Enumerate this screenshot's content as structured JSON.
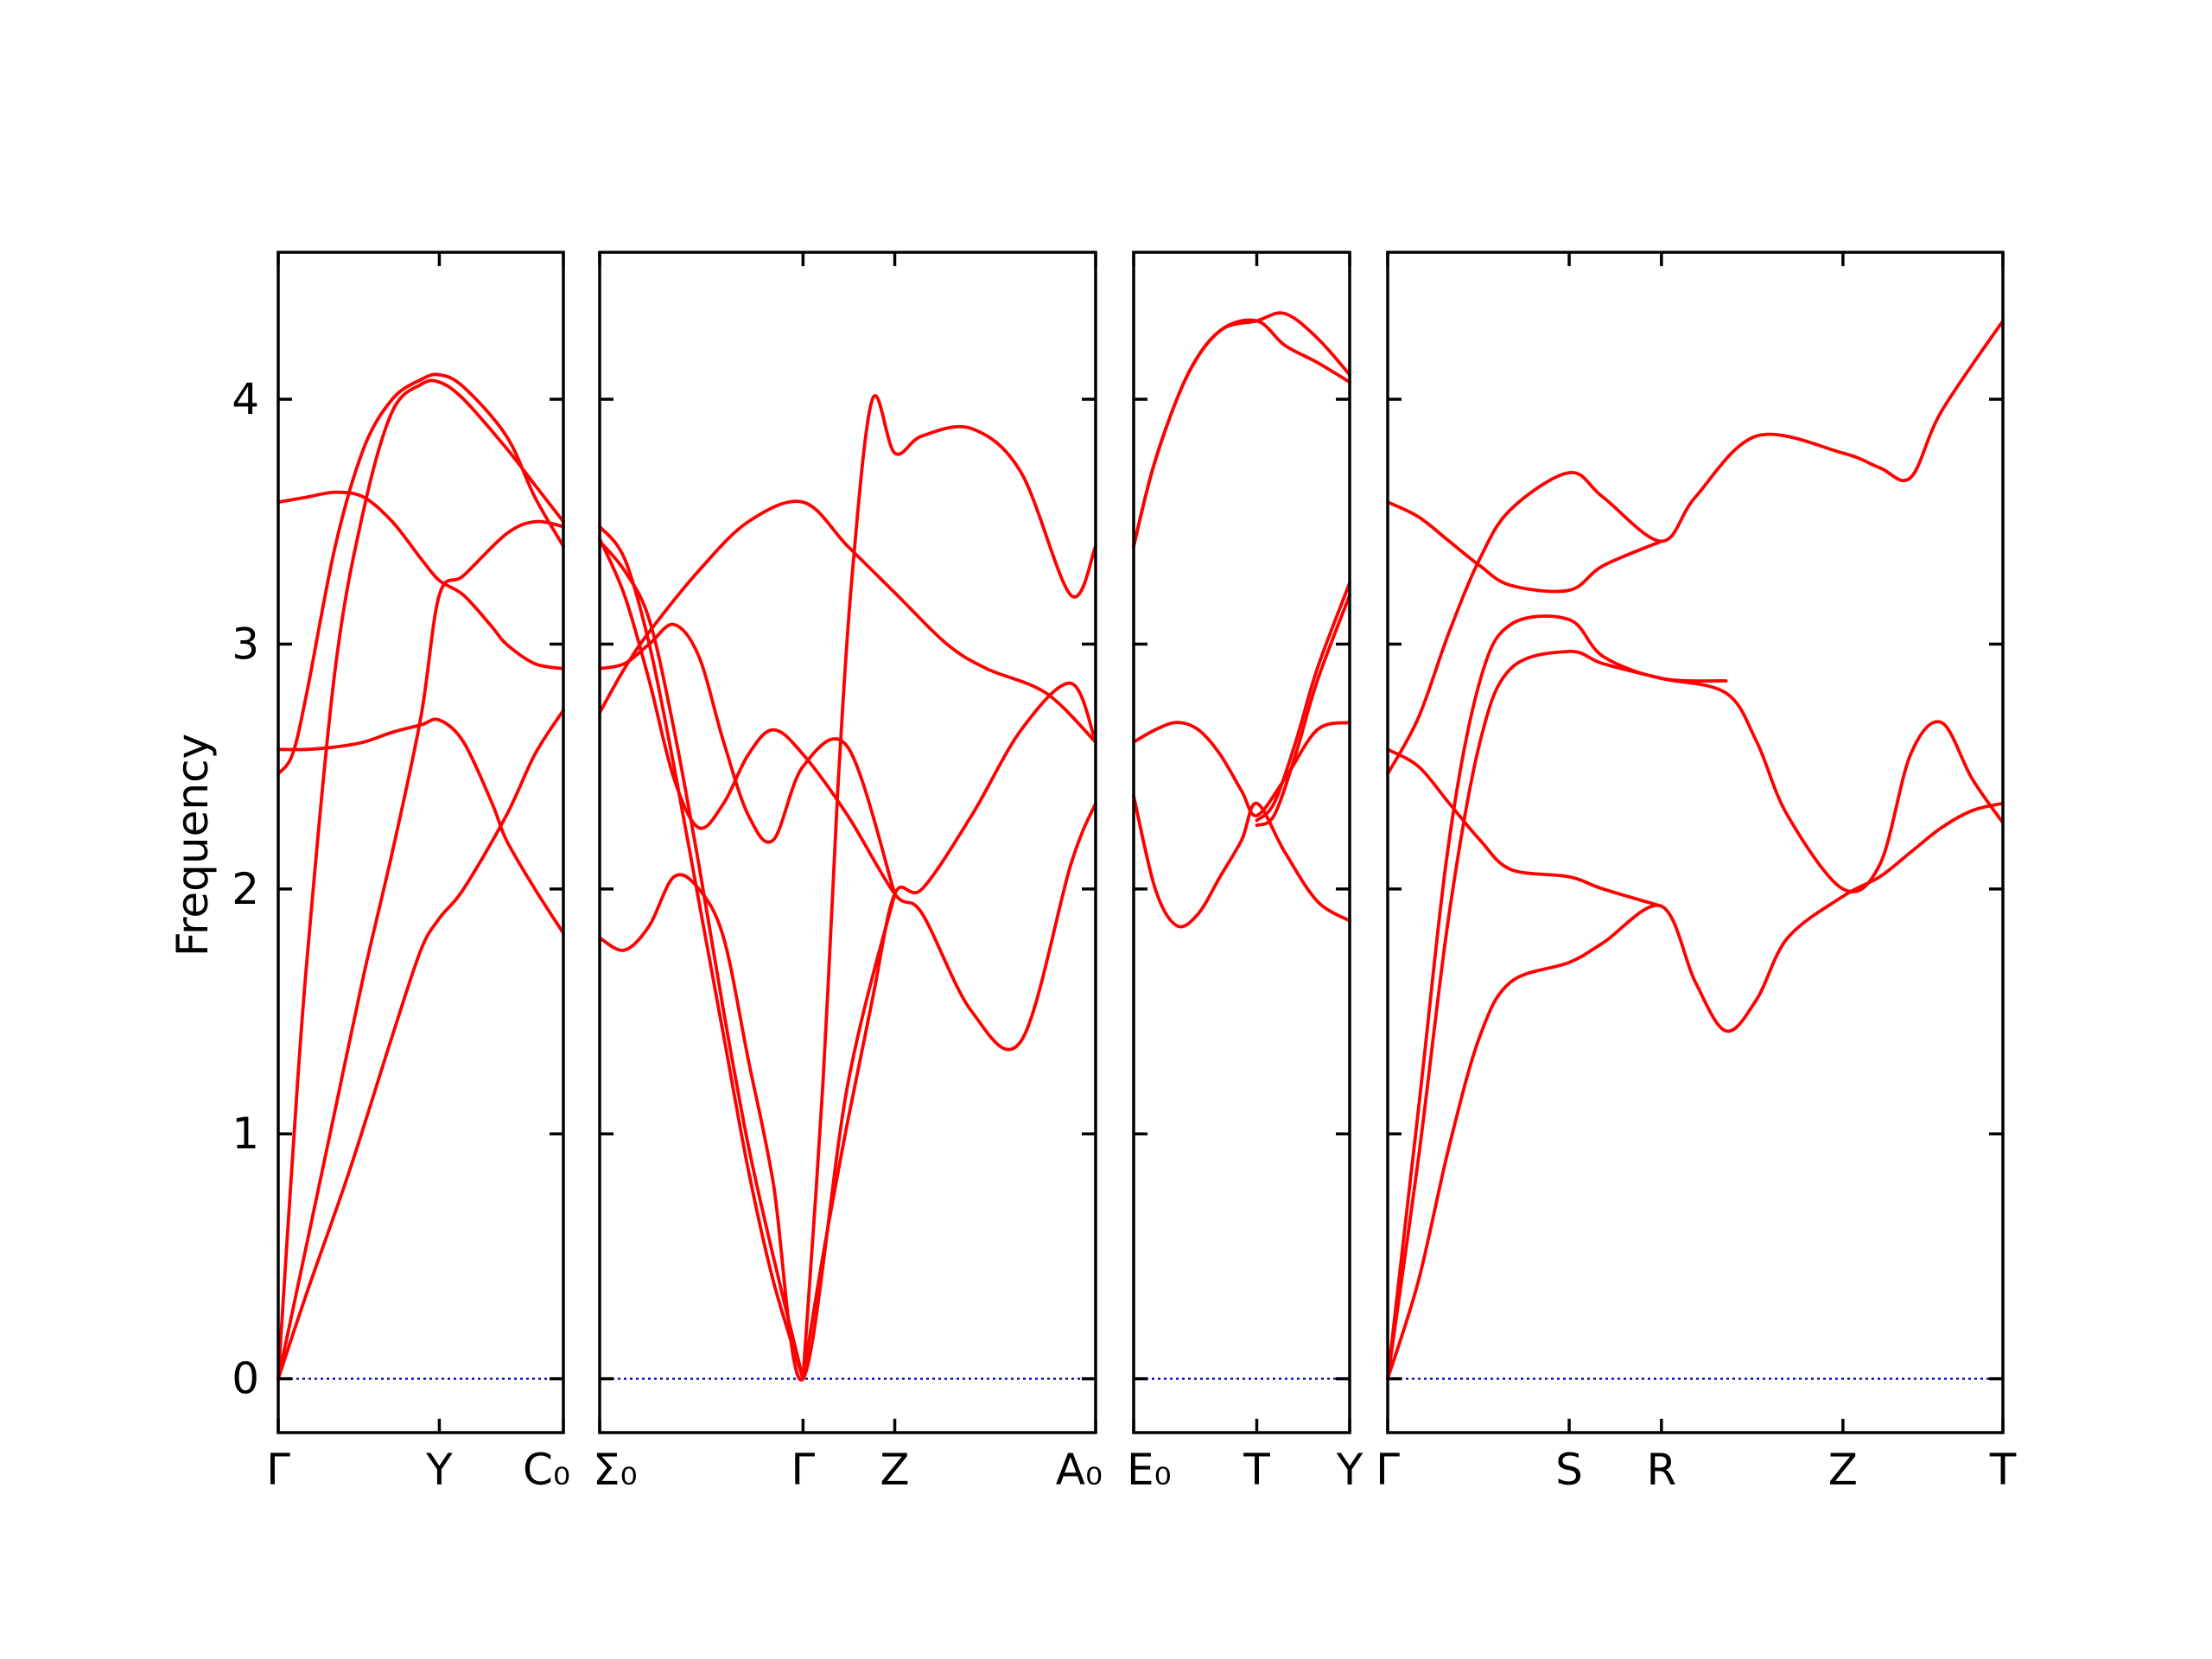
{
  "chart_data": {
    "type": "line",
    "ylabel": "Frequency",
    "ylim": [
      -0.22,
      4.6
    ],
    "yticks": [
      0,
      1,
      2,
      3,
      4
    ],
    "ytick_labels": [
      "0",
      "1",
      "2",
      "3",
      "4"
    ],
    "colors": {
      "bands": "#ff0000",
      "zero_line": "#0000cc",
      "axes": "#000000"
    },
    "grid": false,
    "panels": [
      {
        "name": "path-1",
        "xlim": [
          0,
          1
        ],
        "ticks": [
          {
            "x": 0,
            "label": "Γ"
          },
          {
            "x": 0.565,
            "label": "Y"
          },
          {
            "x": 1,
            "label": "C₀"
          }
        ],
        "series": [
          {
            "x": [
              0,
              0.1,
              0.25,
              0.4,
              0.5,
              0.565,
              0.65,
              0.8,
              0.9,
              1
            ],
            "values": [
              0,
              0.35,
              0.85,
              1.4,
              1.75,
              1.88,
              2.0,
              2.3,
              2.55,
              2.73
            ]
          },
          {
            "x": [
              0,
              0.1,
              0.2,
              0.3,
              0.4,
              0.5,
              0.565,
              0.65,
              0.8,
              0.9,
              1
            ],
            "values": [
              0,
              0.55,
              1.1,
              1.65,
              2.15,
              2.7,
              3.2,
              3.28,
              3.45,
              3.5,
              3.48
            ]
          },
          {
            "x": [
              0,
              0.05,
              0.1,
              0.2,
              0.3,
              0.4,
              0.5,
              0.565,
              0.65,
              0.8,
              0.9,
              1
            ],
            "values": [
              0,
              0.9,
              1.7,
              2.9,
              3.55,
              3.95,
              4.06,
              4.07,
              4.0,
              3.8,
              3.65,
              3.5
            ]
          },
          {
            "x": [
              0,
              0.05,
              0.1,
              0.2,
              0.3,
              0.4,
              0.5,
              0.565,
              0.65,
              0.8,
              0.9,
              1
            ],
            "values": [
              2.47,
              2.55,
              2.8,
              3.4,
              3.8,
              4.0,
              4.08,
              4.1,
              4.05,
              3.85,
              3.6,
              3.4
            ]
          },
          {
            "x": [
              0,
              0.1,
              0.2,
              0.3,
              0.4,
              0.5,
              0.565,
              0.65,
              0.75,
              0.8,
              0.9,
              1
            ],
            "values": [
              3.58,
              3.6,
              3.62,
              3.6,
              3.5,
              3.35,
              3.26,
              3.2,
              3.07,
              3.0,
              2.92,
              2.9
            ]
          },
          {
            "x": [
              0,
              0.1,
              0.2,
              0.3,
              0.4,
              0.5,
              0.565,
              0.65,
              0.75,
              0.8,
              0.9,
              1
            ],
            "values": [
              2.57,
              2.57,
              2.58,
              2.6,
              2.64,
              2.67,
              2.69,
              2.6,
              2.35,
              2.2,
              2.0,
              1.82
            ]
          }
        ]
      },
      {
        "name": "path-2",
        "xlim": [
          0,
          1
        ],
        "ticks": [
          {
            "x": 0,
            "label": "Σ₀"
          },
          {
            "x": 0.41,
            "label": "Γ"
          },
          {
            "x": 0.595,
            "label": "Z"
          },
          {
            "x": 1,
            "label": "A₀"
          }
        ],
        "series": [
          {
            "x": [
              0,
              0.05,
              0.1,
              0.2,
              0.3,
              0.41,
              0.5,
              0.6,
              0.7,
              0.78,
              0.9,
              1
            ],
            "values": [
              2.72,
              2.9,
              3.05,
              3.3,
              3.5,
              3.58,
              3.4,
              3.2,
              3.0,
              2.9,
              2.8,
              2.6
            ]
          },
          {
            "x": [
              0,
              0.05,
              0.1,
              0.15,
              0.2,
              0.25,
              0.3,
              0.35,
              0.41
            ],
            "values": [
              3.48,
              3.35,
              3.0,
              2.5,
              1.95,
              1.4,
              0.85,
              0.4,
              0
            ]
          },
          {
            "x": [
              0,
              0.05,
              0.1,
              0.15,
              0.2,
              0.25,
              0.3,
              0.35,
              0.41
            ],
            "values": [
              3.42,
              3.3,
              3.1,
              2.65,
              2.1,
              1.5,
              0.95,
              0.5,
              0
            ]
          },
          {
            "x": [
              0.41,
              0.45,
              0.5,
              0.55,
              0.595,
              0.65,
              0.75,
              0.85,
              0.95,
              1
            ],
            "values": [
              0,
              0.5,
              1.05,
              1.55,
              1.98,
              2.0,
              2.3,
              2.65,
              2.84,
              2.6
            ]
          },
          {
            "x": [
              0.41,
              0.45,
              0.48,
              0.51,
              0.55,
              0.595,
              0.65,
              0.75,
              0.85,
              0.95,
              1
            ],
            "values": [
              0,
              1.2,
              2.4,
              3.3,
              4.0,
              3.78,
              3.85,
              3.88,
              3.7,
              3.2,
              3.4
            ]
          },
          {
            "x": [
              0,
              0.05,
              0.1,
              0.15,
              0.2,
              0.25,
              0.3,
              0.35,
              0.41,
              0.5,
              0.595,
              0.65,
              0.75,
              0.85,
              0.95,
              1
            ],
            "values": [
              3.43,
              3.2,
              2.85,
              2.45,
              2.25,
              2.35,
              2.55,
              2.65,
              2.55,
              2.3,
              1.98,
              1.9,
              1.5,
              1.38,
              2.1,
              2.35
            ]
          },
          {
            "x": [
              0,
              0.05,
              0.1,
              0.15,
              0.2,
              0.25,
              0.3,
              0.35,
              0.41,
              0.5,
              0.595
            ],
            "values": [
              2.9,
              2.92,
              3.0,
              3.08,
              2.95,
              2.6,
              2.3,
              2.2,
              2.5,
              2.58,
              1.98
            ]
          },
          {
            "x": [
              0,
              0.05,
              0.1,
              0.15,
              0.2,
              0.25,
              0.3,
              0.35,
              0.41,
              0.5,
              0.595
            ],
            "values": [
              1.8,
              1.75,
              1.85,
              2.05,
              2.0,
              1.8,
              1.3,
              0.8,
              0,
              1.2,
              1.98
            ]
          }
        ]
      },
      {
        "name": "path-3",
        "xlim": [
          0,
          1
        ],
        "ticks": [
          {
            "x": 0,
            "label": "E₀"
          },
          {
            "x": 0.57,
            "label": "T"
          },
          {
            "x": 1,
            "label": "Y"
          }
        ],
        "series": [
          {
            "x": [
              0,
              0.1,
              0.25,
              0.4,
              0.57,
              0.7,
              0.85,
              1
            ],
            "values": [
              3.4,
              3.75,
              4.1,
              4.28,
              4.32,
              4.22,
              4.15,
              4.07
            ]
          },
          {
            "x": [
              0,
              0.1,
              0.25,
              0.4,
              0.57,
              0.7,
              0.85,
              1
            ],
            "values": [
              3.4,
              3.75,
              4.1,
              4.28,
              4.32,
              4.35,
              4.25,
              4.1
            ]
          },
          {
            "x": [
              0,
              0.1,
              0.2,
              0.3,
              0.4,
              0.5,
              0.57,
              0.7,
              0.85,
              1
            ],
            "values": [
              2.6,
              2.65,
              2.68,
              2.65,
              2.55,
              2.4,
              2.3,
              2.45,
              2.65,
              2.68
            ]
          },
          {
            "x": [
              0,
              0.1,
              0.2,
              0.3,
              0.4,
              0.5,
              0.57,
              0.7,
              0.85,
              1
            ],
            "values": [
              2.38,
              2.0,
              1.85,
              1.9,
              2.05,
              2.2,
              2.35,
              2.15,
              1.95,
              1.87
            ]
          },
          {
            "x": [
              0,
              0.57,
              0.65,
              0.75,
              0.85,
              1
            ],
            "values": [
              null,
              2.28,
              2.35,
              2.6,
              2.9,
              3.25
            ]
          },
          {
            "x": [
              0.57,
              0.65,
              0.75,
              0.85,
              1
            ],
            "values": [
              2.26,
              2.3,
              2.55,
              2.85,
              3.2
            ]
          }
        ]
      },
      {
        "name": "path-4",
        "xlim": [
          0,
          1
        ],
        "ticks": [
          {
            "x": 0,
            "label": "Γ"
          },
          {
            "x": 0.295,
            "label": "S"
          },
          {
            "x": 0.445,
            "label": "R"
          },
          {
            "x": 0.74,
            "label": "Z"
          },
          {
            "x": 1,
            "label": "T"
          }
        ],
        "series": [
          {
            "x": [
              0,
              0.05,
              0.1,
              0.15,
              0.2,
              0.295,
              0.35,
              0.445,
              0.5,
              0.55,
              0.6,
              0.65,
              0.74,
              0.8,
              0.85,
              0.9,
              0.95,
              1
            ],
            "values": [
              0,
              0.4,
              0.95,
              1.4,
              1.62,
              1.7,
              1.78,
              1.93,
              1.62,
              1.42,
              1.55,
              1.8,
              1.97,
              2.05,
              2.15,
              2.25,
              2.32,
              2.35
            ]
          },
          {
            "x": [
              0,
              0.05,
              0.1,
              0.15,
              0.2,
              0.295,
              0.35,
              0.445,
              0.55,
              0.6,
              0.65,
              0.74,
              0.8,
              0.85,
              0.9,
              0.95,
              1
            ],
            "values": [
              0,
              0.9,
              1.9,
              2.6,
              2.9,
              2.97,
              2.92,
              2.86,
              2.8,
              2.6,
              2.3,
              2.0,
              2.1,
              2.55,
              2.68,
              2.45,
              2.27
            ]
          },
          {
            "x": [
              0,
              0.05,
              0.1,
              0.15,
              0.2,
              0.295,
              0.35,
              0.445,
              0.55
            ],
            "values": [
              0,
              1.1,
              2.2,
              2.85,
              3.08,
              3.1,
              2.95,
              2.86,
              2.85
            ]
          },
          {
            "x": [
              0,
              0.05,
              0.1,
              0.15,
              0.2,
              0.295,
              0.35,
              0.445,
              0.5,
              0.6,
              0.74,
              0.8,
              0.85,
              0.9,
              1
            ],
            "values": [
              2.47,
              2.7,
              3.05,
              3.35,
              3.55,
              3.7,
              3.6,
              3.42,
              3.6,
              3.85,
              3.78,
              3.72,
              3.68,
              3.95,
              4.32
            ]
          },
          {
            "x": [
              0,
              0.05,
              0.1,
              0.15,
              0.2,
              0.295,
              0.35,
              0.445
            ],
            "values": [
              3.58,
              3.52,
              3.42,
              3.32,
              3.24,
              3.22,
              3.32,
              3.42
            ]
          },
          {
            "x": [
              0,
              0.05,
              0.1,
              0.15,
              0.2,
              0.295,
              0.35,
              0.445
            ],
            "values": [
              2.57,
              2.5,
              2.35,
              2.2,
              2.08,
              2.05,
              2.0,
              1.93
            ]
          }
        ]
      }
    ]
  }
}
